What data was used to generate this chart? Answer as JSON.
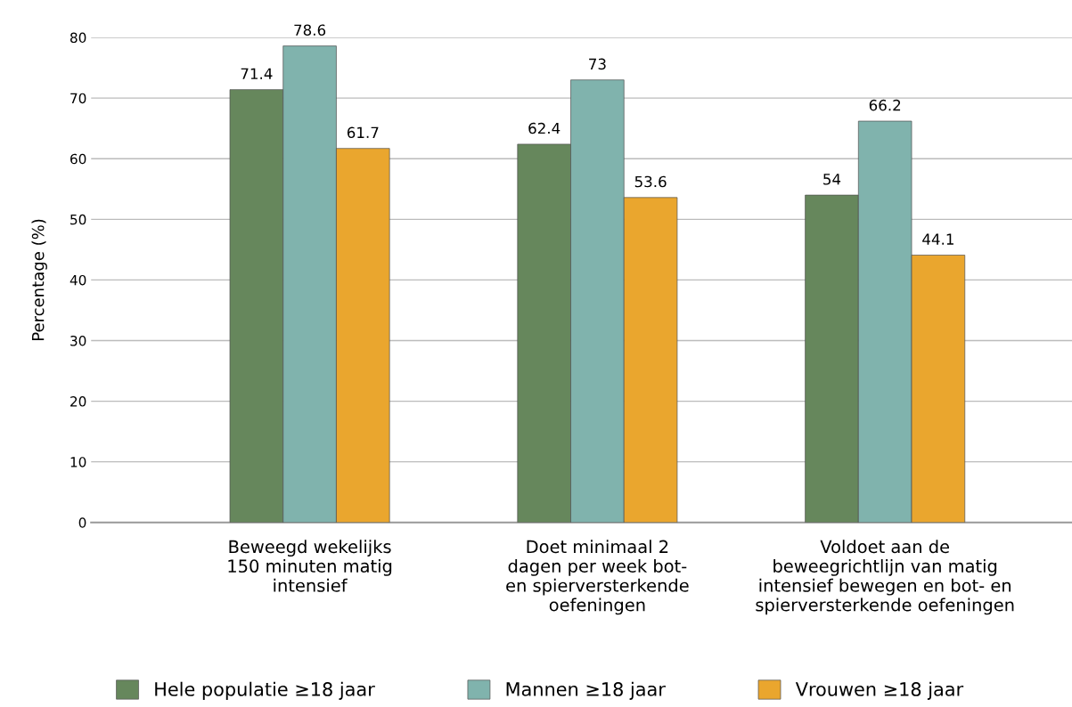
{
  "chart_data": {
    "type": "bar",
    "ylabel": "Percentage (%)",
    "categories": [
      "Beweegd wekelijks\n150 minuten matig\nintensief",
      "Doet minimaal 2\ndagen per week bot-\nen spierversterkende\noefeningen",
      "Voldoet aan de\nbeweegrichtlijn van matig\nintensief bewegen en bot- en\nspierversterkende oefeningen"
    ],
    "series": [
      {
        "name": "Hele populatie ≥18 jaar",
        "color": "#66875c",
        "values": [
          71.4,
          62.4,
          54
        ]
      },
      {
        "name": "Mannen ≥18 jaar",
        "color": "#80b3ad",
        "values": [
          78.6,
          73,
          66.2
        ]
      },
      {
        "name": "Vrouwen ≥18 jaar",
        "color": "#eaa62e",
        "values": [
          61.7,
          53.6,
          44.1
        ]
      }
    ],
    "ylim": [
      0,
      80
    ],
    "yticks": [
      0,
      10,
      20,
      30,
      40,
      50,
      60,
      70,
      80
    ],
    "grid": "y",
    "legend": "bottom",
    "data_labels": true
  }
}
